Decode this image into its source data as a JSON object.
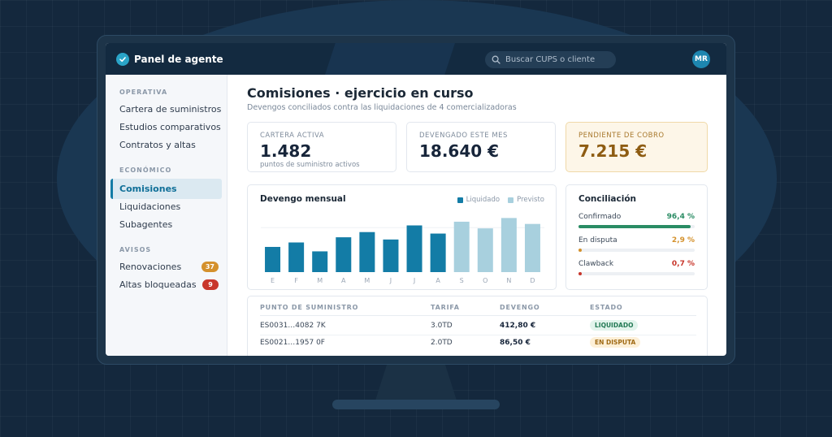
{
  "topbar": {
    "title": "Panel de agente",
    "search_placeholder": "Buscar CUPS o cliente",
    "avatar_initials": "MR"
  },
  "sidebar": {
    "sections": [
      {
        "title": "OPERATIVA",
        "items": [
          {
            "label": "Cartera de suministros"
          },
          {
            "label": "Estudios comparativos"
          },
          {
            "label": "Contratos y altas"
          }
        ]
      },
      {
        "title": "ECONÓMICO",
        "items": [
          {
            "label": "Comisiones",
            "active": true
          },
          {
            "label": "Liquidaciones"
          },
          {
            "label": "Subagentes"
          }
        ]
      },
      {
        "title": "AVISOS",
        "items": [
          {
            "label": "Renovaciones",
            "badge": "37",
            "badge_color": "#d4912c"
          },
          {
            "label": "Altas bloqueadas",
            "badge": "9",
            "badge_color": "#c8362b"
          }
        ]
      }
    ]
  },
  "page": {
    "title": "Comisiones · ejercicio en curso",
    "subtitle": "Devengos conciliados contra las liquidaciones de 4 comercializadoras"
  },
  "kpis": [
    {
      "label": "CARTERA ACTIVA",
      "value": "1.482",
      "note": "puntos de suministro activos"
    },
    {
      "label": "DEVENGADO ESTE MES",
      "value": "18.640 €"
    },
    {
      "label": "PENDIENTE DE COBRO",
      "value": "7.215 €"
    }
  ],
  "chart_data": {
    "type": "bar",
    "title": "Devengo mensual",
    "categories": [
      "E",
      "F",
      "M",
      "A",
      "M",
      "J",
      "J",
      "A",
      "S",
      "O",
      "N",
      "D"
    ],
    "values": [
      34,
      40,
      28,
      47,
      54,
      44,
      63,
      52,
      68,
      59,
      73,
      65
    ],
    "series_status": [
      "Liquidado",
      "Liquidado",
      "Liquidado",
      "Liquidado",
      "Liquidado",
      "Liquidado",
      "Liquidado",
      "Liquidado",
      "Previsto",
      "Previsto",
      "Previsto",
      "Previsto"
    ],
    "legend": [
      {
        "name": "Liquidado",
        "color": "#137ca6"
      },
      {
        "name": "Previsto",
        "color": "#a8d0de"
      }
    ],
    "ylim": [
      0,
      80
    ],
    "legend_position": "top-right",
    "grid": true
  },
  "conciliacion": {
    "title": "Conciliación",
    "rows": [
      {
        "label": "Confirmado",
        "value": "96,4 %",
        "pct": 96.4,
        "color": "#2a8c64"
      },
      {
        "label": "En disputa",
        "value": "2,9 %",
        "pct": 2.9,
        "color": "#d4912c"
      },
      {
        "label": "Clawback",
        "value": "0,7 %",
        "pct": 0.7,
        "color": "#c8362b"
      }
    ]
  },
  "table": {
    "headers": [
      "PUNTO DE SUMINISTRO",
      "TARIFA",
      "DEVENGO",
      "ESTADO"
    ],
    "rows": [
      {
        "cups": "ES0031…4082 7K",
        "tarifa": "3.0TD",
        "devengo": "412,80 €",
        "estado": "LIQUIDADO",
        "estado_bg": "#e2f4ec",
        "estado_fg": "#237a55"
      },
      {
        "cups": "ES0021…1957 0F",
        "tarifa": "2.0TD",
        "devengo": "86,50 €",
        "estado": "EN DISPUTA",
        "estado_bg": "#fdf0d8",
        "estado_fg": "#a06a14"
      }
    ]
  }
}
